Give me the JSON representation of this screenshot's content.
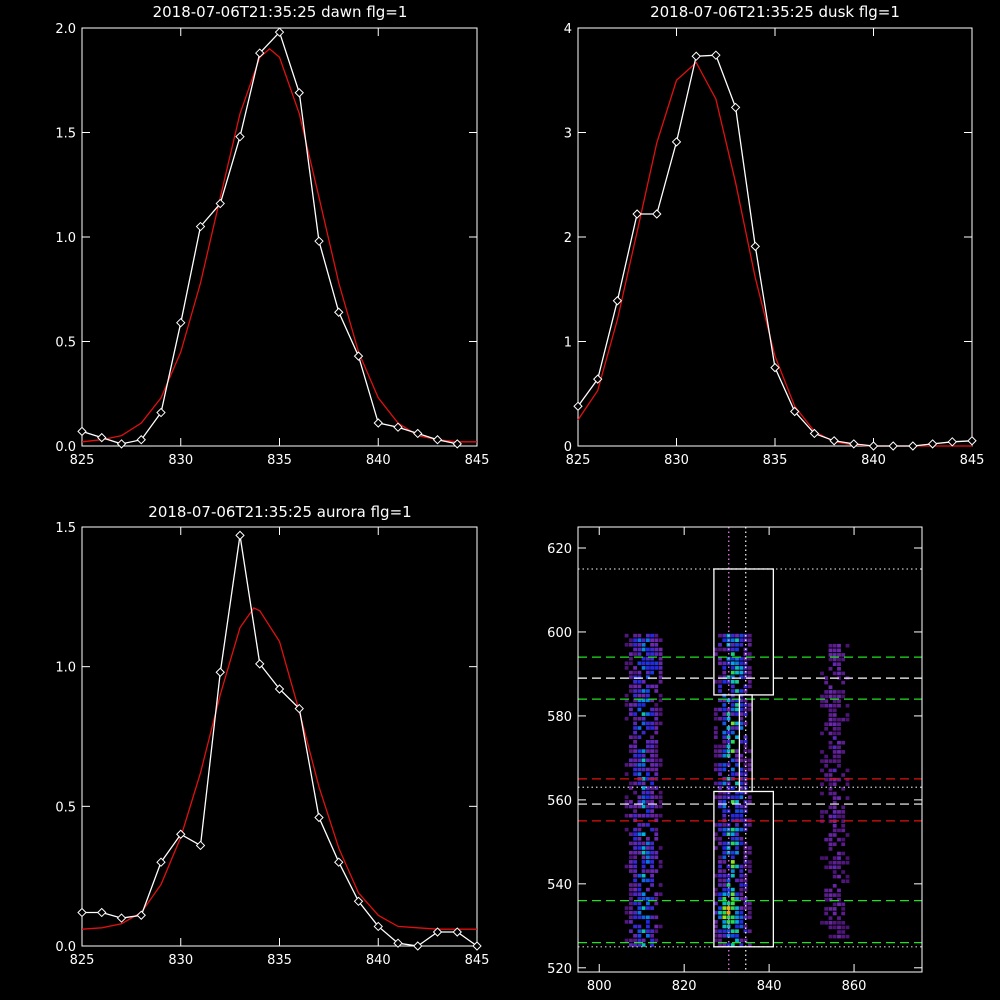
{
  "chart_data": [
    {
      "id": "dawn",
      "type": "line",
      "title": "2018-07-06T21:35:25 dawn flg=1",
      "xlim": [
        825,
        845
      ],
      "ylim": [
        0,
        2.0
      ],
      "xticks": [
        825,
        830,
        835,
        840,
        845
      ],
      "yticks": [
        0.0,
        0.5,
        1.0,
        1.5,
        2.0
      ],
      "xtick_labels": [
        "825",
        "830",
        "835",
        "840",
        "845"
      ],
      "ytick_labels": [
        "0.0",
        "0.5",
        "1.0",
        "1.5",
        "2.0"
      ],
      "series": [
        {
          "kind": "data",
          "color": "#ffffff",
          "marker": "diamond",
          "x": [
            825,
            826,
            827,
            828,
            829,
            830,
            831,
            832,
            833,
            834,
            835,
            836,
            837,
            838,
            839,
            840,
            841,
            842,
            843,
            844
          ],
          "y": [
            0.07,
            0.04,
            0.01,
            0.03,
            0.16,
            0.59,
            1.05,
            1.16,
            1.48,
            1.88,
            1.98,
            1.69,
            0.98,
            0.64,
            0.43,
            0.11,
            0.09,
            0.06,
            0.03,
            0.01
          ]
        },
        {
          "kind": "fit",
          "color": "#e01010",
          "x": [
            825,
            826,
            827,
            828,
            829,
            830,
            831,
            832,
            833,
            834,
            834.5,
            835,
            836,
            837,
            838,
            839,
            840,
            841,
            842,
            843,
            844,
            845
          ],
          "y": [
            0.02,
            0.03,
            0.05,
            0.11,
            0.23,
            0.45,
            0.78,
            1.19,
            1.59,
            1.86,
            1.9,
            1.86,
            1.59,
            1.19,
            0.78,
            0.45,
            0.23,
            0.11,
            0.05,
            0.03,
            0.02,
            0.02
          ]
        }
      ]
    },
    {
      "id": "dusk",
      "type": "line",
      "title": "2018-07-06T21:35:25 dusk flg=1",
      "xlim": [
        825,
        845
      ],
      "ylim": [
        0,
        4
      ],
      "xticks": [
        825,
        830,
        835,
        840,
        845
      ],
      "yticks": [
        0,
        1,
        2,
        3,
        4
      ],
      "xtick_labels": [
        "825",
        "830",
        "835",
        "840",
        "845"
      ],
      "ytick_labels": [
        "0",
        "1",
        "2",
        "3",
        "4"
      ],
      "series": [
        {
          "kind": "data",
          "color": "#ffffff",
          "marker": "diamond",
          "x": [
            825,
            826,
            827,
            828,
            829,
            830,
            831,
            832,
            833,
            834,
            835,
            836,
            837,
            838,
            839,
            840,
            841,
            842,
            843,
            844,
            845
          ],
          "y": [
            0.38,
            0.64,
            1.39,
            2.22,
            2.22,
            2.91,
            3.73,
            3.74,
            3.24,
            1.91,
            0.75,
            0.33,
            0.12,
            0.05,
            0.02,
            0.0,
            0.0,
            0.0,
            0.02,
            0.04,
            0.05
          ]
        },
        {
          "kind": "fit",
          "color": "#e01010",
          "x": [
            825,
            826,
            827,
            828,
            829,
            830,
            831,
            832,
            833,
            834,
            835,
            836,
            837,
            838,
            839,
            840,
            841,
            842,
            843,
            844,
            845
          ],
          "y": [
            0.25,
            0.53,
            1.21,
            2.05,
            2.9,
            3.5,
            3.67,
            3.32,
            2.52,
            1.61,
            0.86,
            0.38,
            0.14,
            0.04,
            0.01,
            0.0,
            0.0,
            0.0,
            0.0,
            0.0,
            0.0
          ]
        }
      ]
    },
    {
      "id": "aurora",
      "type": "line",
      "title": "2018-07-06T21:35:25 aurora flg=1",
      "xlim": [
        825,
        845
      ],
      "ylim": [
        0,
        1.5
      ],
      "xticks": [
        825,
        830,
        835,
        840,
        845
      ],
      "yticks": [
        0.0,
        0.5,
        1.0,
        1.5
      ],
      "xtick_labels": [
        "825",
        "830",
        "835",
        "840",
        "845"
      ],
      "ytick_labels": [
        "0.0",
        "0.5",
        "1.0",
        "1.5"
      ],
      "series": [
        {
          "kind": "data",
          "color": "#ffffff",
          "marker": "diamond",
          "x": [
            825,
            826,
            827,
            828,
            829,
            830,
            831,
            832,
            833,
            834,
            835,
            836,
            837,
            838,
            839,
            840,
            841,
            842,
            843,
            844,
            845
          ],
          "y": [
            0.12,
            0.12,
            0.1,
            0.11,
            0.3,
            0.4,
            0.36,
            0.98,
            1.47,
            1.01,
            0.92,
            0.85,
            0.46,
            0.3,
            0.16,
            0.07,
            0.01,
            0.0,
            0.05,
            0.05,
            0.0
          ]
        },
        {
          "kind": "fit",
          "color": "#e01010",
          "x": [
            825,
            826,
            827,
            828,
            829,
            830,
            831,
            832,
            833,
            833.7,
            834,
            835,
            836,
            837,
            838,
            839,
            840,
            841,
            842,
            843,
            844,
            845
          ],
          "y": [
            0.06,
            0.065,
            0.08,
            0.12,
            0.22,
            0.39,
            0.62,
            0.9,
            1.14,
            1.21,
            1.2,
            1.09,
            0.84,
            0.57,
            0.35,
            0.19,
            0.11,
            0.07,
            0.065,
            0.06,
            0.06,
            0.06
          ]
        }
      ]
    },
    {
      "id": "spectrogram",
      "type": "heatmap",
      "title": "",
      "xlim": [
        795,
        876
      ],
      "ylim": [
        519,
        625
      ],
      "xticks": [
        800,
        820,
        840,
        860
      ],
      "yticks": [
        520,
        540,
        560,
        580,
        600,
        620
      ],
      "xtick_labels": [
        "800",
        "820",
        "840",
        "860"
      ],
      "ytick_labels": [
        "520",
        "540",
        "560",
        "580",
        "600",
        "620"
      ],
      "bands": [
        {
          "x0": 805,
          "x1": 815,
          "y0": 525,
          "y1": 599,
          "peak": 0.45,
          "seed": 3
        },
        {
          "x0": 826,
          "x1": 836,
          "y0": 525,
          "y1": 599,
          "peak": 0.6,
          "seed": 7
        },
        {
          "x0": 850,
          "x1": 860,
          "y0": 527,
          "y1": 597,
          "peak": 0.2,
          "seed": 11
        }
      ],
      "hotspots": [
        {
          "x": 830,
          "y": 533,
          "value": 1.0
        },
        {
          "x": 810,
          "y": 532,
          "value": 0.55
        },
        {
          "x": 832,
          "y": 590,
          "value": 0.6
        },
        {
          "x": 812,
          "y": 592,
          "value": 0.45
        }
      ],
      "boxes": [
        {
          "x0": 827,
          "x1": 841,
          "y0": 525,
          "y1": 562,
          "color": "#ffffff"
        },
        {
          "x0": 833,
          "x1": 836,
          "y0": 562,
          "y1": 585,
          "color": "#ffffff"
        },
        {
          "x0": 827,
          "x1": 841,
          "y0": 585,
          "y1": 615,
          "color": "#ffffff"
        }
      ],
      "hlines": [
        {
          "y": 615,
          "color": "#c8c8c8",
          "style": "dotted"
        },
        {
          "y": 594,
          "color": "#20e020",
          "style": "dashed"
        },
        {
          "y": 589,
          "color": "#ffffff",
          "style": "dashed"
        },
        {
          "y": 584,
          "color": "#20e020",
          "style": "dashed"
        },
        {
          "y": 565,
          "color": "#e01010",
          "style": "dashed"
        },
        {
          "y": 563,
          "color": "#c8c8c8",
          "style": "dotted"
        },
        {
          "y": 559,
          "color": "#ffffff",
          "style": "dashed"
        },
        {
          "y": 555,
          "color": "#e01010",
          "style": "dashed"
        },
        {
          "y": 536,
          "color": "#20e020",
          "style": "dashed"
        },
        {
          "y": 526,
          "color": "#20e020",
          "style": "dashed"
        },
        {
          "y": 525,
          "color": "#c8c8c8",
          "style": "dotted"
        }
      ],
      "vlines": [
        {
          "x": 830.5,
          "color": "#ff80ff",
          "style": "dotted"
        },
        {
          "x": 834.5,
          "color": "#ffffff",
          "style": "dotted"
        }
      ]
    }
  ]
}
